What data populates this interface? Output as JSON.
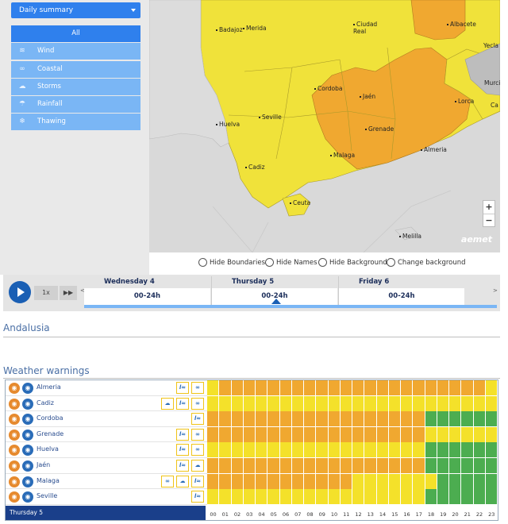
{
  "selector": {
    "value": "Daily summary"
  },
  "menu": [
    {
      "label": "All",
      "icon": "all",
      "active": true
    },
    {
      "label": "Wind",
      "icon": "wind-icon"
    },
    {
      "label": "Coastal",
      "icon": "coastal-icon"
    },
    {
      "label": "Storms",
      "icon": "storms-icon"
    },
    {
      "label": "Rainfall",
      "icon": "rainfall-icon"
    },
    {
      "label": "Thawing",
      "icon": "thawing-icon"
    }
  ],
  "map": {
    "cities": [
      "Badajoz",
      "Merida",
      "Ciudad Real",
      "Albacete",
      "Yecla",
      "Murci",
      "Cordoba",
      "Jaén",
      "Lorca",
      "Ca",
      "Huelva",
      "Seville",
      "Grenade",
      "Almeria",
      "Cadiz",
      "Malaga",
      "Ceuta",
      "Melilla"
    ],
    "zoom_in": "+",
    "zoom_out": "−",
    "brand": "aemet"
  },
  "options": {
    "hide_boundaries": "Hide Boundaries",
    "hide_names": "Hide Names",
    "hide_background": "Hide Background",
    "change_background": "Change background"
  },
  "timeline": {
    "speed": "1x",
    "ff": "▶▶",
    "days": [
      {
        "name": "Wednesday 4",
        "range": "00-24h"
      },
      {
        "name": "Thursday 5",
        "range": "00-24h"
      },
      {
        "name": "Friday 6",
        "range": "00-24h"
      }
    ],
    "prev": "<",
    "next": ">"
  },
  "region": {
    "title": "Andalusia"
  },
  "warnings": {
    "title": "Weather warnings",
    "footer_day": "Thursday 5",
    "hours": [
      "00",
      "01",
      "02",
      "03",
      "04",
      "05",
      "06",
      "07",
      "08",
      "09",
      "10",
      "11",
      "12",
      "13",
      "14",
      "15",
      "16",
      "17",
      "18",
      "19",
      "20",
      "21",
      "22",
      "23"
    ],
    "colors": {
      "Y": "#f4e12a",
      "O": "#f0a830",
      "G": "#4cad50"
    },
    "rows": [
      {
        "province": "Almeria",
        "icons": [
          "W",
          "C"
        ],
        "levels": "YOOOOOOOOOOOOOOOOOOOOOOY"
      },
      {
        "province": "Cadiz",
        "icons": [
          "S",
          "W",
          "C"
        ],
        "levels": "YYYYYYYYYYYYYYYYYYYYYYYY"
      },
      {
        "province": "Cordoba",
        "icons": [
          "W"
        ],
        "levels": "OOOOOOOOOOOOOOOOOOGGGGGG"
      },
      {
        "province": "Grenade",
        "icons": [
          "W",
          "C"
        ],
        "levels": "OOOOOOOOOOOOOOOOOOYYYYYY"
      },
      {
        "province": "Huelva",
        "icons": [
          "W",
          "C"
        ],
        "levels": "YYYYYYYYYYYYYYYYYYGGGGGG"
      },
      {
        "province": "Jaén",
        "icons": [
          "W",
          "S"
        ],
        "levels": "OOOOOOOOOOOOOOOOOOGGGGGG"
      },
      {
        "province": "Malaga",
        "icons": [
          "C",
          "S",
          "W"
        ],
        "levels": "OOOOOOOOOOOOYYYYYYYGGGGG"
      },
      {
        "province": "Seville",
        "icons": [
          "W"
        ],
        "levels": "YYYYYYYYYYYYYYYYYYGGGGGG"
      }
    ]
  }
}
